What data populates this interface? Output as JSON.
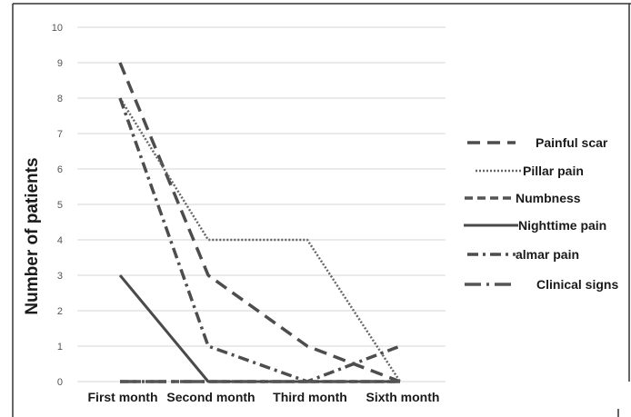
{
  "chart_data": {
    "type": "line",
    "title": "",
    "xlabel": "",
    "ylabel": "Number of patients",
    "categories": [
      "First month",
      "Second month",
      "Third month",
      "Sixth month"
    ],
    "ylim": [
      0,
      10
    ],
    "yticks": [
      0,
      1,
      2,
      3,
      4,
      5,
      6,
      7,
      8,
      9,
      10
    ],
    "grid": true,
    "legend_position": "right",
    "series": [
      {
        "name": "Painful scar",
        "values": [
          9,
          3,
          1,
          0
        ],
        "dash": "long-dash",
        "color": "#4d4d4d"
      },
      {
        "name": "Pillar pain",
        "values": [
          8,
          4,
          4,
          0
        ],
        "dash": "dotted",
        "color": "#666666"
      },
      {
        "name": "Numbness",
        "values": [
          0,
          0,
          0,
          0
        ],
        "dash": "dashed",
        "color": "#555555"
      },
      {
        "name": "Nighttime pain",
        "values": [
          3,
          0,
          0,
          0
        ],
        "dash": "solid",
        "color": "#4a4a4a"
      },
      {
        "name": "almar pain",
        "values": [
          8,
          1,
          0,
          1
        ],
        "dash": "dash-dot",
        "color": "#4d4d4d"
      },
      {
        "name": "Clinical signs",
        "values": [
          0,
          0,
          0,
          0
        ],
        "dash": "long-dash-dot",
        "color": "#555555"
      }
    ]
  }
}
